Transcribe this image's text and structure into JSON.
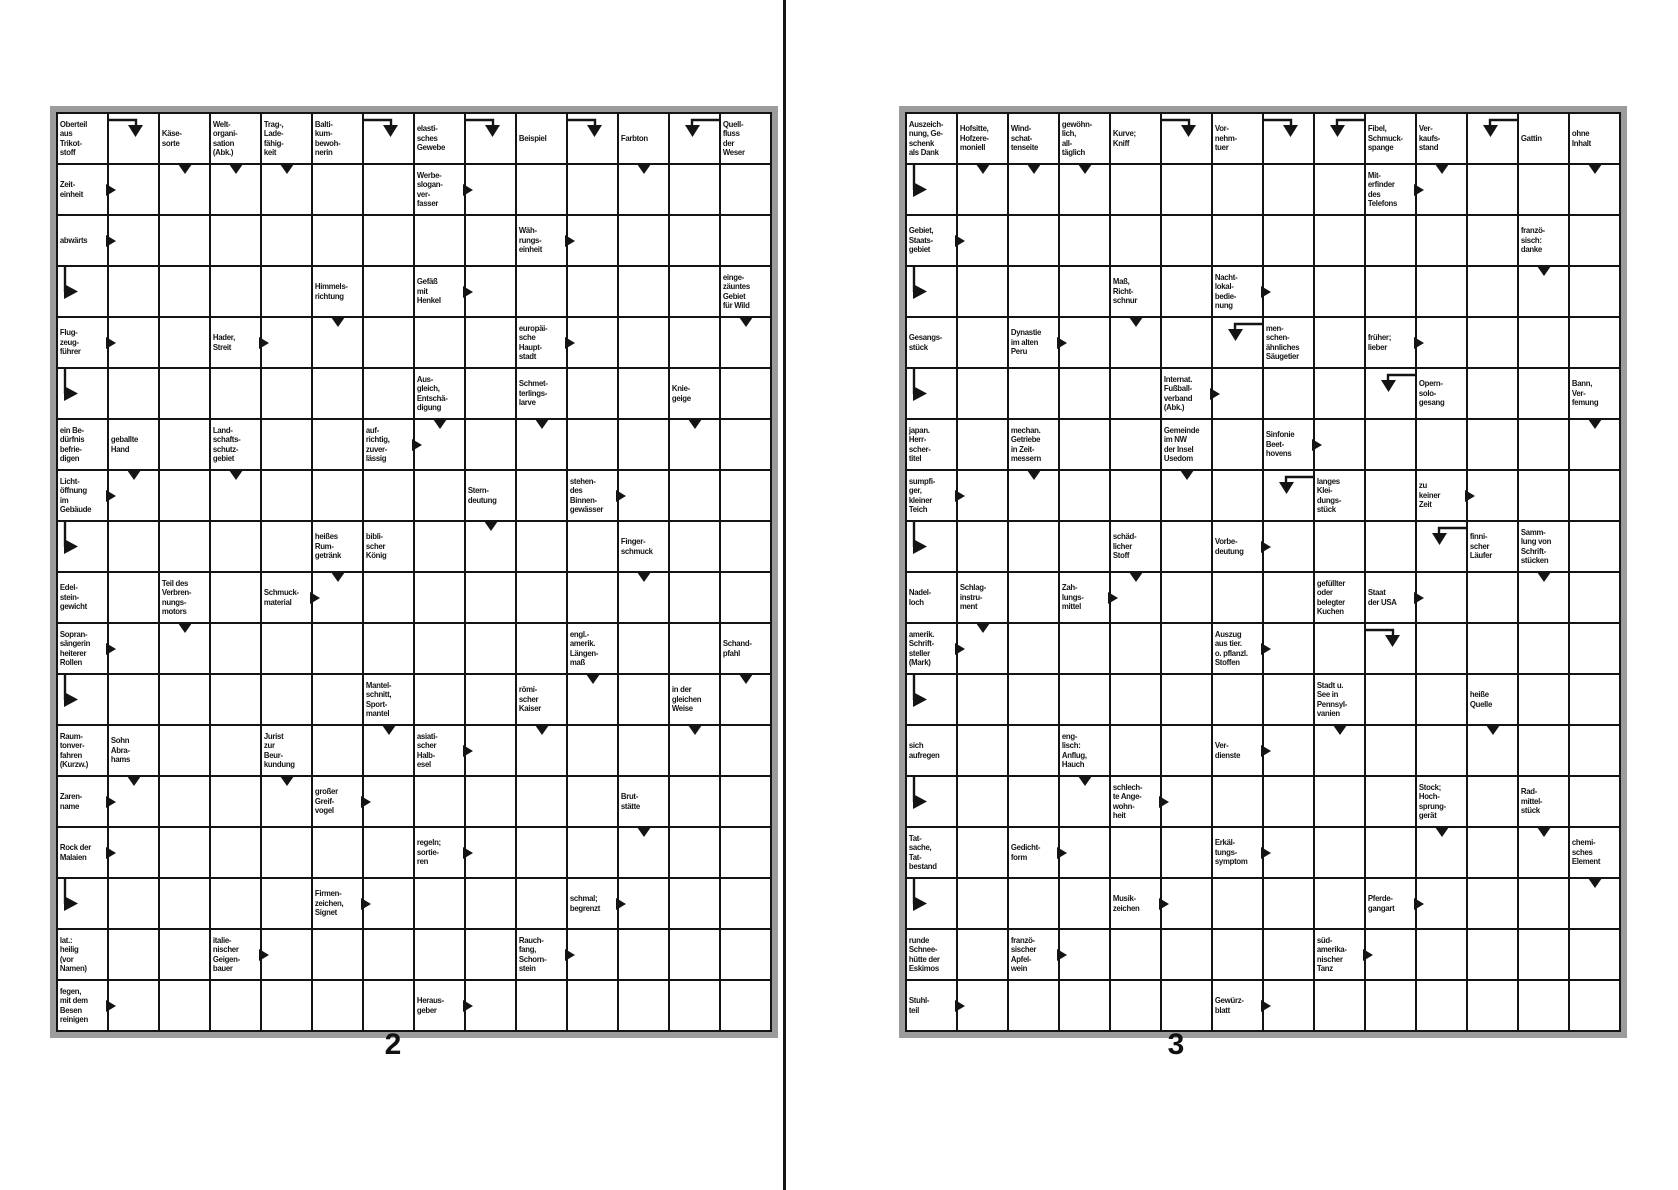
{
  "colors": {
    "grid_line": "#141414",
    "frame_gray": "#9c9c9c",
    "cell_background": "#ffffff",
    "text": "#141414"
  },
  "icons": {
    "arrow_right": "solid right-pointing triangle at clue cell edge",
    "arrow_down": "solid down-pointing triangle at top of answer cell",
    "corner_down": "elbow line with down-pointing triangle",
    "corner_right": "elbow line with right-pointing triangle"
  },
  "puzzles": [
    {
      "page_label": "2",
      "rows": 18,
      "cols": 14,
      "clues": [
        {
          "r": 1,
          "c": 1,
          "text": "Oberteil\naus\nTrikot-\nstoff"
        },
        {
          "r": 1,
          "c": 3,
          "text": "Käse-\nsorte"
        },
        {
          "r": 1,
          "c": 4,
          "text": "Welt-\norgani-\nsation\n(Abk.)"
        },
        {
          "r": 1,
          "c": 5,
          "text": "Trag-,\nLade-\nfähig-\nkeit"
        },
        {
          "r": 1,
          "c": 6,
          "text": "Balti-\nkum-\nbewoh-\nnerin"
        },
        {
          "r": 1,
          "c": 8,
          "text": "elasti-\nsches\nGewebe"
        },
        {
          "r": 1,
          "c": 10,
          "text": "Beispiel"
        },
        {
          "r": 1,
          "c": 12,
          "text": "Farbton"
        },
        {
          "r": 1,
          "c": 14,
          "text": "Quell-\nfluss\nder\nWeser"
        },
        {
          "r": 2,
          "c": 1,
          "text": "Zeit-\neinheit",
          "arrow": "right"
        },
        {
          "r": 2,
          "c": 8,
          "text": "Werbe-\nslogan-\nver-\nfasser",
          "arrow": "right"
        },
        {
          "r": 3,
          "c": 1,
          "text": "abwärts",
          "arrow": "right"
        },
        {
          "r": 3,
          "c": 10,
          "text": "Wäh-\nrungs-\neinheit",
          "arrow": "right"
        },
        {
          "r": 4,
          "c": 6,
          "text": "Himmels-\nrichtung"
        },
        {
          "r": 4,
          "c": 8,
          "text": "Gefäß\nmit\nHenkel",
          "arrow": "right"
        },
        {
          "r": 4,
          "c": 14,
          "text": "einge-\nzäuntes\nGebiet\nfür Wild"
        },
        {
          "r": 5,
          "c": 1,
          "text": "Flug-\nzeug-\nführer",
          "arrow": "right"
        },
        {
          "r": 5,
          "c": 4,
          "text": "Hader,\nStreit",
          "arrow": "right"
        },
        {
          "r": 5,
          "c": 10,
          "text": "europäi-\nsche\nHaupt-\nstadt",
          "arrow": "right"
        },
        {
          "r": 6,
          "c": 8,
          "text": "Aus-\ngleich,\nEntschä-\ndigung"
        },
        {
          "r": 6,
          "c": 10,
          "text": "Schmet-\nterlings-\nlarve"
        },
        {
          "r": 6,
          "c": 13,
          "text": "Knie-\ngeige"
        },
        {
          "r": 7,
          "c": 1,
          "text": "ein Be-\ndürfnis\nbefrie-\ndigen"
        },
        {
          "r": 7,
          "c": 2,
          "text": "geballte\nHand"
        },
        {
          "r": 7,
          "c": 4,
          "text": "Land-\nschafts-\nschutz-\ngebiet"
        },
        {
          "r": 7,
          "c": 7,
          "text": "auf-\nrichtig,\nzuver-\nlässig",
          "arrow": "right"
        },
        {
          "r": 8,
          "c": 1,
          "text": "Licht-\nöffnung\nim\nGebäude",
          "arrow": "right"
        },
        {
          "r": 8,
          "c": 9,
          "text": "Stern-\ndeutung"
        },
        {
          "r": 8,
          "c": 11,
          "text": "stehen-\ndes\nBinnen-\ngewässer",
          "arrow": "right"
        },
        {
          "r": 9,
          "c": 6,
          "text": "heißes\nRum-\ngetränk"
        },
        {
          "r": 9,
          "c": 7,
          "text": "bibli-\nscher\nKönig"
        },
        {
          "r": 9,
          "c": 12,
          "text": "Finger-\nschmuck"
        },
        {
          "r": 10,
          "c": 1,
          "text": "Edel-\nstein-\ngewicht"
        },
        {
          "r": 10,
          "c": 3,
          "text": "Teil des\nVerbren-\nnungs-\nmotors"
        },
        {
          "r": 10,
          "c": 5,
          "text": "Schmuck-\nmaterial",
          "arrow": "right"
        },
        {
          "r": 11,
          "c": 1,
          "text": "Sopran-\nsängerin\nheiterer\nRollen",
          "arrow": "right"
        },
        {
          "r": 11,
          "c": 11,
          "text": "engl.-\namerik.\nLängen-\nmaß"
        },
        {
          "r": 11,
          "c": 14,
          "text": "Schand-\npfahl"
        },
        {
          "r": 12,
          "c": 7,
          "text": "Mantel-\nschnitt,\nSport-\nmantel"
        },
        {
          "r": 12,
          "c": 10,
          "text": "römi-\nscher\nKaiser"
        },
        {
          "r": 12,
          "c": 13,
          "text": "in der\ngleichen\nWeise"
        },
        {
          "r": 13,
          "c": 1,
          "text": "Raum-\ntonver-\nfahren\n(Kurzw.)"
        },
        {
          "r": 13,
          "c": 2,
          "text": "Sohn\nAbra-\nhams"
        },
        {
          "r": 13,
          "c": 5,
          "text": "Jurist\nzur\nBeur-\nkundung"
        },
        {
          "r": 13,
          "c": 8,
          "text": "asiati-\nscher\nHalb-\nesel",
          "arrow": "right"
        },
        {
          "r": 14,
          "c": 1,
          "text": "Zaren-\nname",
          "arrow": "right"
        },
        {
          "r": 14,
          "c": 6,
          "text": "großer\nGreif-\nvogel",
          "arrow": "right"
        },
        {
          "r": 14,
          "c": 12,
          "text": "Brut-\nstätte"
        },
        {
          "r": 15,
          "c": 1,
          "text": "Rock der\nMalaien",
          "arrow": "right"
        },
        {
          "r": 15,
          "c": 8,
          "text": "regeln;\nsortie-\nren",
          "arrow": "right"
        },
        {
          "r": 16,
          "c": 6,
          "text": "Firmen-\nzeichen,\nSignet",
          "arrow": "right"
        },
        {
          "r": 16,
          "c": 11,
          "text": "schmal;\nbegrenzt",
          "arrow": "right"
        },
        {
          "r": 17,
          "c": 1,
          "text": "lat.:\nheilig\n(vor\nNamen)"
        },
        {
          "r": 17,
          "c": 4,
          "text": "italie-\nnischer\nGeigen-\nbauer",
          "arrow": "right"
        },
        {
          "r": 17,
          "c": 10,
          "text": "Rauch-\nfang,\nSchorn-\nstein",
          "arrow": "right"
        },
        {
          "r": 18,
          "c": 1,
          "text": "fegen,\nmit dem\nBesen\nreinigen",
          "arrow": "right"
        },
        {
          "r": 18,
          "c": 8,
          "text": "Heraus-\ngeber",
          "arrow": "right"
        }
      ],
      "down_arrows": [
        [
          2,
          3
        ],
        [
          2,
          4
        ],
        [
          2,
          5
        ],
        [
          2,
          12
        ],
        [
          5,
          6
        ],
        [
          5,
          14
        ],
        [
          7,
          8
        ],
        [
          7,
          10
        ],
        [
          7,
          13
        ],
        [
          8,
          2
        ],
        [
          8,
          4
        ],
        [
          9,
          9
        ],
        [
          10,
          6
        ],
        [
          10,
          12
        ],
        [
          11,
          3
        ],
        [
          12,
          11
        ],
        [
          12,
          14
        ],
        [
          13,
          7
        ],
        [
          13,
          10
        ],
        [
          13,
          13
        ],
        [
          14,
          2
        ],
        [
          14,
          5
        ],
        [
          15,
          12
        ]
      ],
      "corner_down": [
        {
          "r": 1,
          "c": 2,
          "line": "left"
        },
        {
          "r": 1,
          "c": 7,
          "line": "left"
        },
        {
          "r": 1,
          "c": 9,
          "line": "left"
        },
        {
          "r": 1,
          "c": 11,
          "line": "left"
        },
        {
          "r": 1,
          "c": 13,
          "line": "right"
        }
      ],
      "corner_right_rows": [
        4,
        6,
        9,
        12,
        16
      ]
    },
    {
      "page_label": "3",
      "rows": 18,
      "cols": 14,
      "clues": [
        {
          "r": 1,
          "c": 1,
          "text": "Auszeich-\nnung, Ge-\nschenk\nals Dank"
        },
        {
          "r": 1,
          "c": 2,
          "text": "Hofsitte,\nHofzere-\nmoniell"
        },
        {
          "r": 1,
          "c": 3,
          "text": "Wind-\nschat-\ntenseite"
        },
        {
          "r": 1,
          "c": 4,
          "text": "gewöhn-\nlich,\nall-\ntäglich"
        },
        {
          "r": 1,
          "c": 5,
          "text": "Kurve;\nKniff"
        },
        {
          "r": 1,
          "c": 7,
          "text": "Vor-\nnehm-\ntuer"
        },
        {
          "r": 1,
          "c": 10,
          "text": "Fibel,\nSchmuck-\nspange"
        },
        {
          "r": 1,
          "c": 11,
          "text": "Ver-\nkaufs-\nstand"
        },
        {
          "r": 1,
          "c": 13,
          "text": "Gattin"
        },
        {
          "r": 1,
          "c": 14,
          "text": "ohne\nInhalt"
        },
        {
          "r": 2,
          "c": 10,
          "text": "Mit-\nerfinder\ndes\nTelefons",
          "arrow": "right"
        },
        {
          "r": 3,
          "c": 1,
          "text": "Gebiet,\nStaats-\ngebiet",
          "arrow": "right"
        },
        {
          "r": 3,
          "c": 13,
          "text": "franzö-\nsisch:\ndanke"
        },
        {
          "r": 4,
          "c": 5,
          "text": "Maß,\nRicht-\nschnur"
        },
        {
          "r": 4,
          "c": 7,
          "text": "Nacht-\nlokal-\nbedie-\nnung",
          "arrow": "right"
        },
        {
          "r": 5,
          "c": 1,
          "text": "Gesangs-\nstück"
        },
        {
          "r": 5,
          "c": 3,
          "text": "Dynastie\nim alten\nPeru",
          "arrow": "right"
        },
        {
          "r": 5,
          "c": 8,
          "text": "men-\nschen-\nähnliches\nSäugetier"
        },
        {
          "r": 5,
          "c": 10,
          "text": "früher;\nlieber",
          "arrow": "right"
        },
        {
          "r": 6,
          "c": 6,
          "text": "Internat.\nFußball-\nverband\n(Abk.)",
          "arrow": "right"
        },
        {
          "r": 6,
          "c": 11,
          "text": "Opern-\nsolo-\ngesang"
        },
        {
          "r": 6,
          "c": 14,
          "text": "Bann,\nVer-\nfemung"
        },
        {
          "r": 7,
          "c": 1,
          "text": "japan.\nHerr-\nscher-\ntitel"
        },
        {
          "r": 7,
          "c": 3,
          "text": "mechan.\nGetriebe\nin Zeit-\nmessern"
        },
        {
          "r": 7,
          "c": 6,
          "text": "Gemeinde\nim NW\nder Insel\nUsedom"
        },
        {
          "r": 7,
          "c": 8,
          "text": "Sinfonie\nBeet-\nhovens",
          "arrow": "right"
        },
        {
          "r": 8,
          "c": 1,
          "text": "sumpfi-\nger,\nkleiner\nTeich",
          "arrow": "right"
        },
        {
          "r": 8,
          "c": 9,
          "text": "langes\nKlei-\ndungs-\nstück"
        },
        {
          "r": 8,
          "c": 11,
          "text": "zu\nkeiner\nZeit",
          "arrow": "right"
        },
        {
          "r": 9,
          "c": 5,
          "text": "schäd-\nlicher\nStoff"
        },
        {
          "r": 9,
          "c": 7,
          "text": "Vorbe-\ndeutung",
          "arrow": "right"
        },
        {
          "r": 9,
          "c": 12,
          "text": "finni-\nscher\nLäufer"
        },
        {
          "r": 9,
          "c": 13,
          "text": "Samm-\nlung von\nSchrift-\nstücken"
        },
        {
          "r": 10,
          "c": 1,
          "text": "Nadel-\nloch"
        },
        {
          "r": 10,
          "c": 2,
          "text": "Schlag-\ninstru-\nment"
        },
        {
          "r": 10,
          "c": 4,
          "text": "Zah-\nlungs-\nmittel",
          "arrow": "right"
        },
        {
          "r": 10,
          "c": 9,
          "text": "gefüllter\noder\nbelegter\nKuchen"
        },
        {
          "r": 10,
          "c": 10,
          "text": "Staat\nder USA",
          "arrow": "right"
        },
        {
          "r": 11,
          "c": 1,
          "text": "amerik.\nSchrift-\nsteller\n(Mark)",
          "arrow": "right"
        },
        {
          "r": 11,
          "c": 7,
          "text": "Auszug\naus tier.\no. pflanzl.\nStoffen",
          "arrow": "right"
        },
        {
          "r": 12,
          "c": 9,
          "text": "Stadt u.\nSee in\nPennsyl-\nvanien"
        },
        {
          "r": 12,
          "c": 12,
          "text": "heiße\nQuelle"
        },
        {
          "r": 13,
          "c": 1,
          "text": "sich\naufregen"
        },
        {
          "r": 13,
          "c": 4,
          "text": "eng-\nlisch:\nAnflug,\nHauch"
        },
        {
          "r": 13,
          "c": 7,
          "text": "Ver-\ndienste",
          "arrow": "right"
        },
        {
          "r": 14,
          "c": 5,
          "text": "schlech-\nte Ange-\nwohn-\nheit",
          "arrow": "right"
        },
        {
          "r": 14,
          "c": 11,
          "text": "Stock;\nHoch-\nsprung-\ngerät"
        },
        {
          "r": 14,
          "c": 13,
          "text": "Rad-\nmittel-\nstück"
        },
        {
          "r": 15,
          "c": 1,
          "text": "Tat-\nsache,\nTat-\nbestand"
        },
        {
          "r": 15,
          "c": 3,
          "text": "Gedicht-\nform",
          "arrow": "right"
        },
        {
          "r": 15,
          "c": 7,
          "text": "Erkäl-\ntungs-\nsymptom",
          "arrow": "right"
        },
        {
          "r": 15,
          "c": 14,
          "text": "chemi-\nsches\nElement"
        },
        {
          "r": 16,
          "c": 5,
          "text": "Musik-\nzeichen",
          "arrow": "right"
        },
        {
          "r": 16,
          "c": 10,
          "text": "Pferde-\ngangart",
          "arrow": "right"
        },
        {
          "r": 17,
          "c": 1,
          "text": "runde\nSchnee-\nhütte der\nEskimos"
        },
        {
          "r": 17,
          "c": 3,
          "text": "franzö-\nsischer\nApfel-\nwein",
          "arrow": "right"
        },
        {
          "r": 17,
          "c": 9,
          "text": "süd-\namerika-\nnischer\nTanz",
          "arrow": "right"
        },
        {
          "r": 18,
          "c": 1,
          "text": "Stuhl-\nteil",
          "arrow": "right"
        },
        {
          "r": 18,
          "c": 7,
          "text": "Gewürz-\nblatt",
          "arrow": "right"
        }
      ],
      "down_arrows": [
        [
          2,
          2
        ],
        [
          2,
          3
        ],
        [
          2,
          4
        ],
        [
          2,
          11
        ],
        [
          2,
          14
        ],
        [
          4,
          13
        ],
        [
          5,
          5
        ],
        [
          7,
          14
        ],
        [
          8,
          3
        ],
        [
          8,
          6
        ],
        [
          10,
          5
        ],
        [
          10,
          13
        ],
        [
          11,
          2
        ],
        [
          13,
          9
        ],
        [
          13,
          12
        ],
        [
          14,
          4
        ],
        [
          15,
          11
        ],
        [
          15,
          13
        ],
        [
          16,
          14
        ]
      ],
      "corner_down": [
        {
          "r": 1,
          "c": 6,
          "line": "left"
        },
        {
          "r": 1,
          "c": 8,
          "line": "left"
        },
        {
          "r": 1,
          "c": 9,
          "line": "right"
        },
        {
          "r": 1,
          "c": 12,
          "line": "right"
        },
        {
          "r": 5,
          "c": 7,
          "line": "right"
        },
        {
          "r": 6,
          "c": 10,
          "line": "right"
        },
        {
          "r": 8,
          "c": 8,
          "line": "right"
        },
        {
          "r": 9,
          "c": 11,
          "line": "right"
        },
        {
          "r": 11,
          "c": 10,
          "line": "left"
        }
      ],
      "corner_right_rows": [
        2,
        4,
        6,
        9,
        12,
        14,
        16
      ]
    }
  ]
}
